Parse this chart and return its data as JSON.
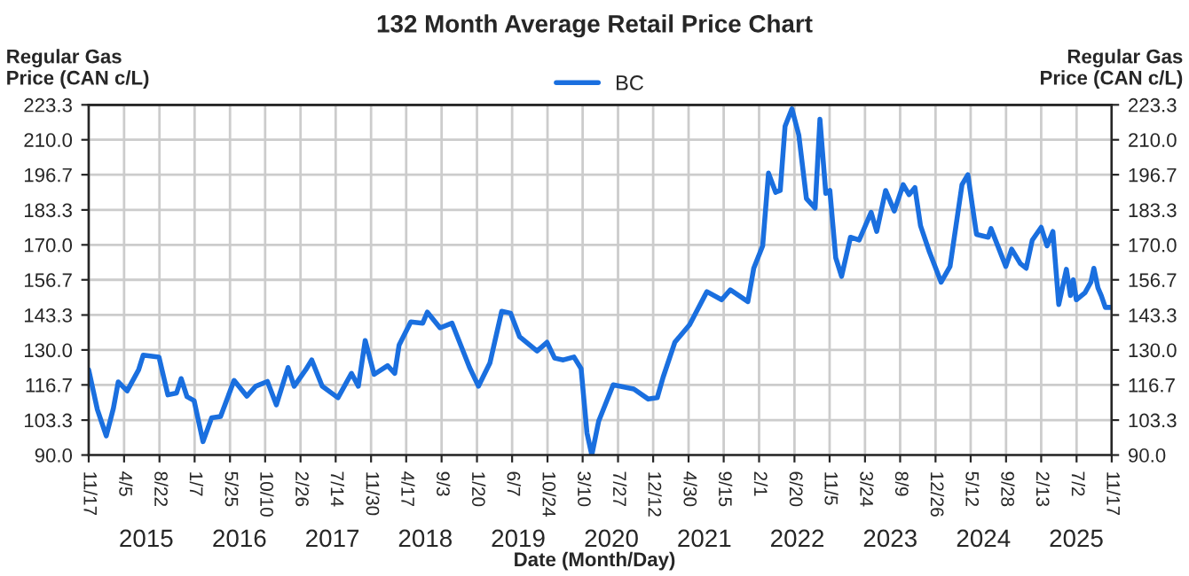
{
  "chart_data": {
    "type": "line",
    "title": "132 Month Average Retail Price Chart",
    "xlabel": "Date (Month/Day)",
    "ylabel": "Regular Gas\nPrice (CAN c/L)",
    "y2label": "Regular Gas\nPrice (CAN c/L)",
    "x": [
      "2014-11-17",
      "2014-12-21",
      "2015-01-25",
      "2015-02-22",
      "2015-03-13",
      "2015-04-17",
      "2015-06-01",
      "2015-06-19",
      "2015-08-20",
      "2015-09-24",
      "2015-10-28",
      "2015-11-15",
      "2015-12-08",
      "2016-01-05",
      "2016-02-09",
      "2016-03-14",
      "2016-04-18",
      "2016-06-10",
      "2016-07-30",
      "2016-09-03",
      "2016-10-19",
      "2016-11-23",
      "2017-01-08",
      "2017-02-01",
      "2017-03-18",
      "2017-04-11",
      "2017-05-22",
      "2017-07-23",
      "2017-09-14",
      "2017-10-11",
      "2017-11-07",
      "2017-12-12",
      "2018-02-03",
      "2018-03-03",
      "2018-03-20",
      "2018-05-05",
      "2018-06-21",
      "2018-07-09",
      "2018-08-28",
      "2018-10-14",
      "2018-12-22",
      "2019-01-26",
      "2019-03-12",
      "2019-04-27",
      "2019-06-01",
      "2019-07-06",
      "2019-09-13",
      "2019-10-22",
      "2019-11-21",
      "2019-12-25",
      "2020-02-05",
      "2020-03-04",
      "2020-03-27",
      "2020-04-15",
      "2020-05-12",
      "2020-07-08",
      "2020-09-27",
      "2020-11-23",
      "2020-12-28",
      "2021-01-20",
      "2021-03-07",
      "2021-05-04",
      "2021-07-11",
      "2021-09-07",
      "2021-10-11",
      "2021-12-19",
      "2022-01-11",
      "2022-02-15",
      "2022-03-10",
      "2022-04-07",
      "2022-04-25",
      "2022-05-14",
      "2022-06-10",
      "2022-07-07",
      "2022-08-06",
      "2022-09-09",
      "2022-09-28",
      "2022-10-21",
      "2022-11-06",
      "2022-11-29",
      "2022-12-22",
      "2023-01-26",
      "2023-03-01",
      "2023-04-17",
      "2023-05-09",
      "2023-06-13",
      "2023-07-17",
      "2023-08-21",
      "2023-09-13",
      "2023-10-06",
      "2023-10-28",
      "2023-12-02",
      "2024-01-17",
      "2024-02-21",
      "2024-04-08",
      "2024-05-01",
      "2024-06-04",
      "2024-07-20",
      "2024-07-31",
      "2024-09-27",
      "2024-10-20",
      "2024-11-23",
      "2024-12-16",
      "2025-01-09",
      "2025-02-13",
      "2025-03-08",
      "2025-03-31",
      "2025-04-23",
      "2025-05-23",
      "2025-06-08",
      "2025-06-19",
      "2025-07-01",
      "2025-08-04",
      "2025-08-27",
      "2025-09-08",
      "2025-09-24",
      "2025-10-07",
      "2025-10-23",
      "2025-11-15"
    ],
    "series": [
      {
        "name": "BC",
        "color": "#1a6fdf",
        "values": [
          122.4,
          107.3,
          97.3,
          107.8,
          117.8,
          114.4,
          122.4,
          128,
          127.3,
          112.9,
          113.6,
          119.1,
          112.2,
          110.7,
          95.1,
          104.2,
          104.7,
          118.4,
          112.4,
          116.2,
          118,
          109.1,
          123.3,
          116.2,
          122.4,
          126.2,
          116.2,
          111.8,
          121.1,
          116.2,
          133.6,
          120.7,
          124,
          121.1,
          131.8,
          140.7,
          140.2,
          144.4,
          138.4,
          140.2,
          123.3,
          116.2,
          125.1,
          144.7,
          144,
          135.1,
          129.6,
          132.9,
          126.9,
          126.2,
          127.3,
          122.9,
          98.4,
          90,
          102.9,
          116.7,
          115.1,
          111.3,
          111.8,
          119.6,
          132.9,
          139.6,
          152.2,
          149.1,
          152.9,
          148.4,
          161.1,
          169.6,
          197.3,
          190,
          190.7,
          215.1,
          221.8,
          211.8,
          187.6,
          184,
          217.8,
          189.6,
          190.7,
          165.1,
          158,
          172.9,
          171.8,
          182.4,
          175.1,
          190.7,
          182.9,
          192.9,
          189.1,
          191.8,
          177.3,
          167.3,
          155.8,
          161.8,
          192.9,
          196.7,
          174,
          172.9,
          176.2,
          161.8,
          168.4,
          162.9,
          161.1,
          171.8,
          176.7,
          169.6,
          175.1,
          147.3,
          160.7,
          150.7,
          156.7,
          149.1,
          151.8,
          155.8,
          161.1,
          153.6,
          150.7,
          146.2,
          146.2
        ]
      }
    ],
    "xlim": [
      "2014-11-17",
      "2025-11-17"
    ],
    "xticks": [
      {
        "value": "2014-11-17",
        "label": "11/17"
      },
      {
        "value": "2015-04-05",
        "label": "4/5"
      },
      {
        "value": "2015-08-22",
        "label": "8/22"
      },
      {
        "value": "2016-01-07",
        "label": "1/7"
      },
      {
        "value": "2016-05-25",
        "label": "5/25"
      },
      {
        "value": "2016-10-10",
        "label": "10/10"
      },
      {
        "value": "2017-02-26",
        "label": "2/26"
      },
      {
        "value": "2017-07-14",
        "label": "7/14"
      },
      {
        "value": "2017-11-30",
        "label": "11/30"
      },
      {
        "value": "2018-04-17",
        "label": "4/17"
      },
      {
        "value": "2018-09-03",
        "label": "9/3"
      },
      {
        "value": "2019-01-20",
        "label": "1/20"
      },
      {
        "value": "2019-06-07",
        "label": "6/7"
      },
      {
        "value": "2019-10-24",
        "label": "10/24"
      },
      {
        "value": "2020-03-10",
        "label": "3/10"
      },
      {
        "value": "2020-07-27",
        "label": "7/27"
      },
      {
        "value": "2020-12-12",
        "label": "12/12"
      },
      {
        "value": "2021-04-30",
        "label": "4/30"
      },
      {
        "value": "2021-09-15",
        "label": "9/15"
      },
      {
        "value": "2022-02-01",
        "label": "2/1"
      },
      {
        "value": "2022-06-20",
        "label": "6/20"
      },
      {
        "value": "2022-11-05",
        "label": "11/5"
      },
      {
        "value": "2023-03-24",
        "label": "3/24"
      },
      {
        "value": "2023-08-09",
        "label": "8/9"
      },
      {
        "value": "2023-12-26",
        "label": "12/26"
      },
      {
        "value": "2024-05-12",
        "label": "5/12"
      },
      {
        "value": "2024-09-28",
        "label": "9/28"
      },
      {
        "value": "2025-02-13",
        "label": "2/13"
      },
      {
        "value": "2025-07-02",
        "label": "7/2"
      },
      {
        "value": "2025-11-17",
        "label": "11/17"
      }
    ],
    "x2lim": [
      "2014-11-17",
      "2025-11-17"
    ],
    "x2ticks": [
      {
        "value": "2015-07-01",
        "label": "2015"
      },
      {
        "value": "2016-07-01",
        "label": "2016"
      },
      {
        "value": "2017-07-01",
        "label": "2017"
      },
      {
        "value": "2018-07-01",
        "label": "2018"
      },
      {
        "value": "2019-07-01",
        "label": "2019"
      },
      {
        "value": "2020-07-01",
        "label": "2020"
      },
      {
        "value": "2021-07-01",
        "label": "2021"
      },
      {
        "value": "2022-07-01",
        "label": "2022"
      },
      {
        "value": "2023-07-01",
        "label": "2023"
      },
      {
        "value": "2024-07-01",
        "label": "2024"
      },
      {
        "value": "2025-07-01",
        "label": "2025"
      }
    ],
    "ylim": [
      90,
      223.3
    ],
    "yticks": [
      {
        "value": 90,
        "label": "90.0"
      },
      {
        "value": 103.3,
        "label": "103.3"
      },
      {
        "value": 116.7,
        "label": "116.7"
      },
      {
        "value": 130,
        "label": "130.0"
      },
      {
        "value": 143.3,
        "label": "143.3"
      },
      {
        "value": 156.7,
        "label": "156.7"
      },
      {
        "value": 170,
        "label": "170.0"
      },
      {
        "value": 183.3,
        "label": "183.3"
      },
      {
        "value": 196.7,
        "label": "196.7"
      },
      {
        "value": 210,
        "label": "210.0"
      },
      {
        "value": 223.3,
        "label": "223.3"
      }
    ],
    "y2lim": [
      90,
      223.3
    ],
    "y2ticks": [
      {
        "value": 90,
        "label": "90.0"
      },
      {
        "value": 103.3,
        "label": "103.3"
      },
      {
        "value": 116.7,
        "label": "116.7"
      },
      {
        "value": 130,
        "label": "130.0"
      },
      {
        "value": 143.3,
        "label": "143.3"
      },
      {
        "value": 156.7,
        "label": "156.7"
      },
      {
        "value": 170,
        "label": "170.0"
      },
      {
        "value": 183.3,
        "label": "183.3"
      },
      {
        "value": 196.7,
        "label": "196.7"
      },
      {
        "value": 210,
        "label": "210.0"
      },
      {
        "value": 223.3,
        "label": "223.3"
      }
    ],
    "grid": true,
    "legend": "top",
    "marker": "none",
    "line_style": "solid"
  }
}
